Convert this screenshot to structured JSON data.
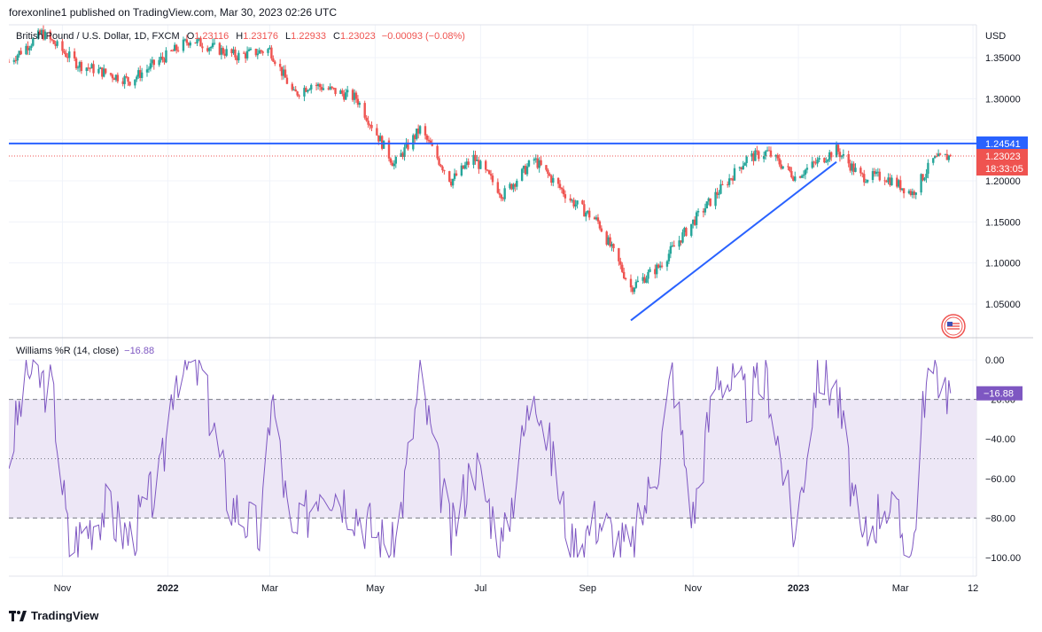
{
  "header": {
    "published": "forexonline1 published on TradingView.com, Mar 30, 2023 02:26 UTC"
  },
  "legend": {
    "symbol": "British Pound / U.S. Dollar, 1D, FXCM",
    "open_label": "O",
    "open": "1.23116",
    "high_label": "H",
    "high": "1.23176",
    "low_label": "L",
    "low": "1.22933",
    "close_label": "C",
    "close": "1.23023",
    "change": "−0.00093 (−0.08%)"
  },
  "indicator": {
    "name": "Williams %R (14, close)",
    "value": "−16.88"
  },
  "footer": {
    "brand": "TradingView",
    "logo_icon": "tradingview-logo-icon",
    "flag_icon": "us-flag-icon"
  },
  "colors": {
    "up": "#26a69a",
    "down": "#ef5350",
    "hline": "#2962ff",
    "trendline": "#2962ff",
    "wr_line": "#7e57c2",
    "wr_band": "#ede7f6"
  },
  "chart_data": [
    {
      "type": "candlestick",
      "currency": "USD",
      "y_ticks": [
        "1.35000",
        "1.30000",
        "1.25000",
        "1.20000",
        "1.15000",
        "1.10000",
        "1.05000"
      ],
      "ylim": [
        1.01,
        1.39
      ],
      "x_labels": [
        "Nov",
        "2022",
        "Mar",
        "May",
        "Jul",
        "Sep",
        "Nov",
        "2023",
        "Mar",
        "12"
      ],
      "horizontal_line": {
        "value": 1.24541,
        "label": "1.24541"
      },
      "last_price": {
        "value": 1.23023,
        "label": "1.23023",
        "countdown": "18:33:05"
      },
      "trendline": {
        "from": {
          "date": "2022-09-26",
          "price": 1.03
        },
        "to": {
          "date": "2023-01-23",
          "price": 1.223
        }
      },
      "series_key_points": [
        {
          "date": "2021-10-01",
          "close": 1.345
        },
        {
          "date": "2021-10-20",
          "close": 1.38
        },
        {
          "date": "2021-11-10",
          "close": 1.342
        },
        {
          "date": "2021-12-10",
          "close": 1.322
        },
        {
          "date": "2022-01-14",
          "close": 1.372
        },
        {
          "date": "2022-02-10",
          "close": 1.352
        },
        {
          "date": "2022-03-01",
          "close": 1.36
        },
        {
          "date": "2022-03-15",
          "close": 1.305
        },
        {
          "date": "2022-03-25",
          "close": 1.318
        },
        {
          "date": "2022-04-20",
          "close": 1.301
        },
        {
          "date": "2022-05-12",
          "close": 1.22
        },
        {
          "date": "2022-05-27",
          "close": 1.263
        },
        {
          "date": "2022-06-14",
          "close": 1.2
        },
        {
          "date": "2022-06-27",
          "close": 1.228
        },
        {
          "date": "2022-07-14",
          "close": 1.183
        },
        {
          "date": "2022-08-01",
          "close": 1.226
        },
        {
          "date": "2022-08-23",
          "close": 1.175
        },
        {
          "date": "2022-09-07",
          "close": 1.15
        },
        {
          "date": "2022-09-26",
          "close": 1.07
        },
        {
          "date": "2022-10-12",
          "close": 1.095
        },
        {
          "date": "2022-11-01",
          "close": 1.15
        },
        {
          "date": "2022-11-15",
          "close": 1.185
        },
        {
          "date": "2022-12-02",
          "close": 1.227
        },
        {
          "date": "2022-12-14",
          "close": 1.235
        },
        {
          "date": "2022-12-30",
          "close": 1.205
        },
        {
          "date": "2023-01-23",
          "close": 1.238
        },
        {
          "date": "2023-02-06",
          "close": 1.205
        },
        {
          "date": "2023-02-20",
          "close": 1.205
        },
        {
          "date": "2023-03-08",
          "close": 1.185
        },
        {
          "date": "2023-03-20",
          "close": 1.225
        },
        {
          "date": "2023-03-30",
          "close": 1.2302
        }
      ]
    },
    {
      "type": "line",
      "name": "Williams %R (14, close)",
      "y_ticks": [
        "0.00",
        "−20.00",
        "−40.00",
        "−60.00",
        "−80.00",
        "−100.00"
      ],
      "ylim": [
        -105,
        5
      ],
      "band": [
        -80,
        -20
      ],
      "series_key_points": [
        {
          "date": "2021-10-01",
          "value": -50
        },
        {
          "date": "2021-10-12",
          "value": -5
        },
        {
          "date": "2021-10-26",
          "value": -15
        },
        {
          "date": "2021-11-05",
          "value": -95
        },
        {
          "date": "2021-11-25",
          "value": -75
        },
        {
          "date": "2021-12-10",
          "value": -90
        },
        {
          "date": "2021-12-28",
          "value": -60
        },
        {
          "date": "2022-01-05",
          "value": -5
        },
        {
          "date": "2022-01-20",
          "value": -5
        },
        {
          "date": "2022-02-05",
          "value": -70
        },
        {
          "date": "2022-02-24",
          "value": -90
        },
        {
          "date": "2022-03-02",
          "value": -15
        },
        {
          "date": "2022-03-14",
          "value": -95
        },
        {
          "date": "2022-03-31",
          "value": -60
        },
        {
          "date": "2022-04-14",
          "value": -70
        },
        {
          "date": "2022-05-12",
          "value": -98
        },
        {
          "date": "2022-05-27",
          "value": -10
        },
        {
          "date": "2022-06-14",
          "value": -90
        },
        {
          "date": "2022-06-27",
          "value": -50
        },
        {
          "date": "2022-07-14",
          "value": -95
        },
        {
          "date": "2022-08-01",
          "value": -10
        },
        {
          "date": "2022-08-23",
          "value": -95
        },
        {
          "date": "2022-09-07",
          "value": -80
        },
        {
          "date": "2022-09-26",
          "value": -98
        },
        {
          "date": "2022-10-12",
          "value": -50
        },
        {
          "date": "2022-10-20",
          "value": -5
        },
        {
          "date": "2022-11-01",
          "value": -80
        },
        {
          "date": "2022-11-15",
          "value": -5
        },
        {
          "date": "2022-12-02",
          "value": -20
        },
        {
          "date": "2022-12-14",
          "value": -10
        },
        {
          "date": "2022-12-30",
          "value": -90
        },
        {
          "date": "2023-01-12",
          "value": -5
        },
        {
          "date": "2023-01-23",
          "value": -15
        },
        {
          "date": "2023-02-06",
          "value": -95
        },
        {
          "date": "2023-02-20",
          "value": -70
        },
        {
          "date": "2023-03-08",
          "value": -98
        },
        {
          "date": "2023-03-15",
          "value": -15
        },
        {
          "date": "2023-03-22",
          "value": -5
        },
        {
          "date": "2023-03-30",
          "value": -16.88
        }
      ],
      "last_value_label": "−16.88"
    }
  ]
}
